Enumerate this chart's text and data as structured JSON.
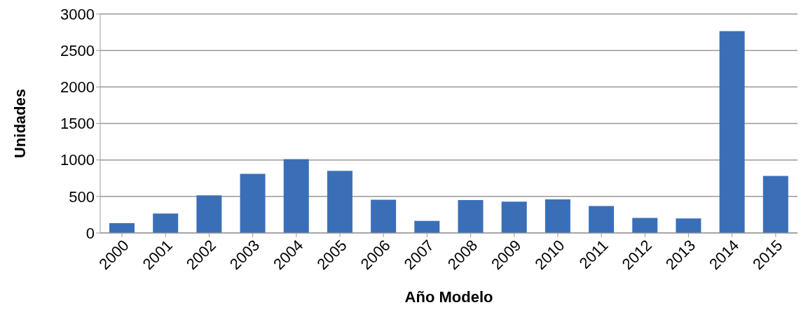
{
  "chart_data": {
    "type": "bar",
    "xlabel": "Año Modelo",
    "ylabel": "Unidades",
    "categories": [
      "2000",
      "2001",
      "2002",
      "2003",
      "2004",
      "2005",
      "2006",
      "2007",
      "2008",
      "2009",
      "2010",
      "2011",
      "2012",
      "2013",
      "2014",
      "2015"
    ],
    "values": [
      135,
      265,
      515,
      810,
      1010,
      850,
      455,
      165,
      450,
      430,
      460,
      370,
      205,
      200,
      2765,
      780
    ],
    "color": "#3a6fb8",
    "ylim": [
      0,
      3000
    ],
    "yticks": [
      0,
      500,
      1000,
      1500,
      2000,
      2500,
      3000
    ],
    "grid": "y"
  }
}
